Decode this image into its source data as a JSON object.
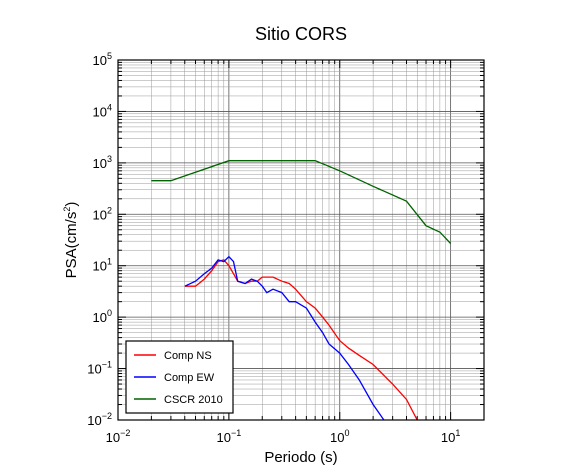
{
  "chart_data": {
    "type": "line",
    "title": "Sitio CORS",
    "xlabel": "Periodo (s)",
    "ylabel_base": "PSA(cm/s",
    "ylabel_sup": "2",
    "ylabel_end": ")",
    "x_scale": "log",
    "y_scale": "log",
    "xlim": [
      0.01,
      20
    ],
    "ylim": [
      0.01,
      100000
    ],
    "grid": true,
    "legend_position": "bottom-left",
    "x_ticks": [
      {
        "base": "10",
        "exp": "−2"
      },
      {
        "base": "10",
        "exp": "−1"
      },
      {
        "base": "10",
        "exp": "0"
      },
      {
        "base": "10",
        "exp": "1"
      }
    ],
    "y_ticks": [
      {
        "base": "10",
        "exp": "−2"
      },
      {
        "base": "10",
        "exp": "−1"
      },
      {
        "base": "10",
        "exp": "0"
      },
      {
        "base": "10",
        "exp": "1"
      },
      {
        "base": "10",
        "exp": "2"
      },
      {
        "base": "10",
        "exp": "3"
      },
      {
        "base": "10",
        "exp": "4"
      },
      {
        "base": "10",
        "exp": "5"
      }
    ],
    "series": [
      {
        "name": "Comp NS",
        "color": "#ff0000",
        "points": [
          [
            0.04,
            4.0
          ],
          [
            0.05,
            4.0
          ],
          [
            0.06,
            5.5
          ],
          [
            0.07,
            8.0
          ],
          [
            0.08,
            12.0
          ],
          [
            0.09,
            13.0
          ],
          [
            0.1,
            10.0
          ],
          [
            0.11,
            7.0
          ],
          [
            0.12,
            5.0
          ],
          [
            0.14,
            4.5
          ],
          [
            0.16,
            5.0
          ],
          [
            0.18,
            5.0
          ],
          [
            0.2,
            6.0
          ],
          [
            0.25,
            6.0
          ],
          [
            0.3,
            5.0
          ],
          [
            0.35,
            4.5
          ],
          [
            0.4,
            3.5
          ],
          [
            0.5,
            2.0
          ],
          [
            0.6,
            1.5
          ],
          [
            0.7,
            1.0
          ],
          [
            0.8,
            0.7
          ],
          [
            1.0,
            0.35
          ],
          [
            1.2,
            0.25
          ],
          [
            1.5,
            0.18
          ],
          [
            2.0,
            0.12
          ],
          [
            3.0,
            0.05
          ],
          [
            4.0,
            0.025
          ],
          [
            5.0,
            0.01
          ]
        ]
      },
      {
        "name": "Comp EW",
        "color": "#0000ff",
        "points": [
          [
            0.04,
            4.0
          ],
          [
            0.05,
            5.0
          ],
          [
            0.06,
            7.0
          ],
          [
            0.07,
            9.0
          ],
          [
            0.08,
            13.0
          ],
          [
            0.09,
            12.0
          ],
          [
            0.1,
            15.0
          ],
          [
            0.11,
            12.0
          ],
          [
            0.12,
            5.0
          ],
          [
            0.14,
            4.5
          ],
          [
            0.16,
            5.5
          ],
          [
            0.18,
            5.0
          ],
          [
            0.2,
            4.0
          ],
          [
            0.22,
            3.0
          ],
          [
            0.25,
            3.5
          ],
          [
            0.3,
            3.0
          ],
          [
            0.35,
            2.0
          ],
          [
            0.4,
            2.0
          ],
          [
            0.5,
            1.5
          ],
          [
            0.6,
            0.8
          ],
          [
            0.7,
            0.5
          ],
          [
            0.8,
            0.3
          ],
          [
            1.0,
            0.2
          ],
          [
            1.2,
            0.12
          ],
          [
            1.5,
            0.06
          ],
          [
            2.0,
            0.02
          ],
          [
            2.5,
            0.01
          ]
        ]
      },
      {
        "name": "CSCR 2010",
        "color": "#006400",
        "points": [
          [
            0.02,
            450
          ],
          [
            0.03,
            450
          ],
          [
            0.1,
            1100
          ],
          [
            0.6,
            1100
          ],
          [
            1.0,
            700
          ],
          [
            2.0,
            350
          ],
          [
            4.0,
            180
          ],
          [
            6.0,
            60
          ],
          [
            8.0,
            45
          ],
          [
            10.0,
            27
          ]
        ]
      }
    ]
  }
}
